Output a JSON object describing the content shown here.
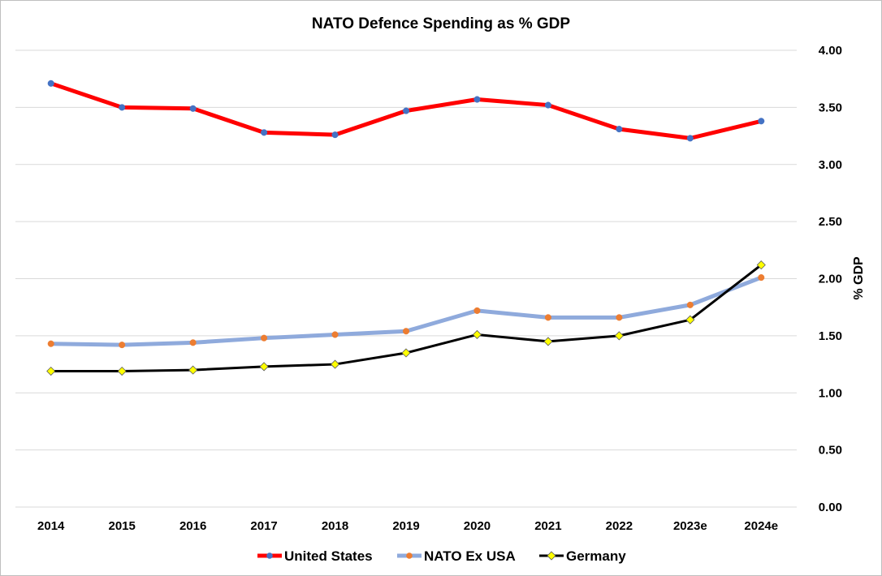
{
  "chart_data": {
    "type": "line",
    "title": "NATO Defence Spending as % GDP",
    "xlabel": "",
    "ylabel": "% GDP",
    "categories": [
      "2014",
      "2015",
      "2016",
      "2017",
      "2018",
      "2019",
      "2020",
      "2021",
      "2022",
      "2023e",
      "2024e"
    ],
    "ylim": [
      0,
      4
    ],
    "y_ticks": [
      "0.00",
      "0.50",
      "1.00",
      "1.50",
      "2.00",
      "2.50",
      "3.00",
      "3.50",
      "4.00"
    ],
    "y_axis_side": "right",
    "grid": true,
    "legend_position": "bottom",
    "series": [
      {
        "name": "United States",
        "values": [
          3.71,
          3.5,
          3.49,
          3.28,
          3.26,
          3.47,
          3.57,
          3.52,
          3.31,
          3.23,
          3.38
        ],
        "line_color": "#ff0000",
        "marker_color": "#4472c4",
        "marker": "circle"
      },
      {
        "name": "NATO Ex USA",
        "values": [
          1.43,
          1.42,
          1.44,
          1.48,
          1.51,
          1.54,
          1.72,
          1.66,
          1.66,
          1.77,
          2.01
        ],
        "line_color": "#8faadc",
        "marker_color": "#ed7d31",
        "marker": "circle"
      },
      {
        "name": "Germany",
        "values": [
          1.19,
          1.19,
          1.2,
          1.23,
          1.25,
          1.35,
          1.51,
          1.45,
          1.5,
          1.64,
          2.12
        ],
        "line_color": "#000000",
        "marker_color": "#ffff00",
        "marker": "diamond"
      }
    ]
  }
}
